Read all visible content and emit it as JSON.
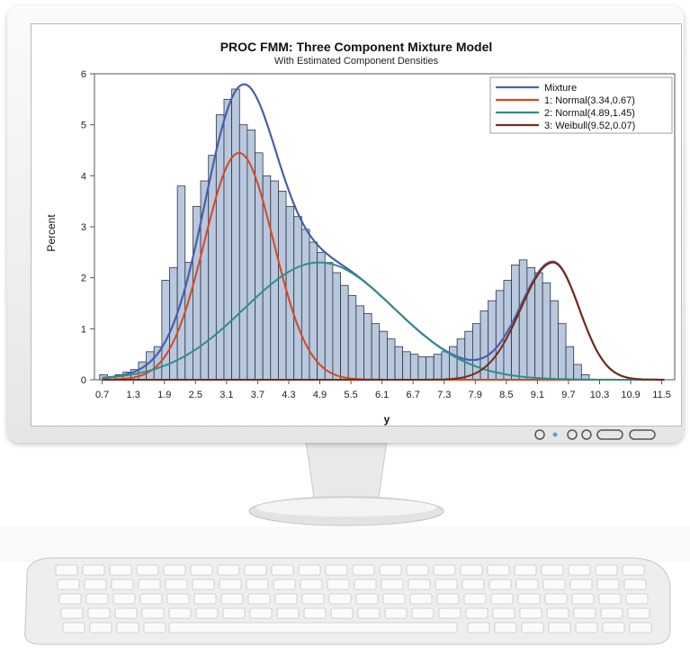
{
  "monitor": {
    "buttons": [
      "power",
      "led",
      "b1",
      "b2",
      "b3",
      "b4"
    ]
  },
  "chart_data": {
    "type": "bar",
    "title": "PROC FMM: Three Component Mixture Model",
    "subtitle": "With Estimated Component Densities",
    "xlabel": "y",
    "ylabel": "Percent",
    "xlim": [
      0.55,
      11.75
    ],
    "ylim": [
      0,
      6
    ],
    "x_ticks": [
      "0.7",
      "1.3",
      "1.9",
      "2.5",
      "3.1",
      "3.7",
      "4.3",
      "4.9",
      "5.5",
      "6.1",
      "6.7",
      "7.3",
      "7.9",
      "8.5",
      "9.1",
      "9.7",
      "10.3",
      "10.9",
      "11.5"
    ],
    "y_ticks": [
      "0",
      "1",
      "2",
      "3",
      "4",
      "5",
      "6"
    ],
    "bin_width": 0.15,
    "bins_start": 0.65,
    "values": [
      0.1,
      0.05,
      0.1,
      0.15,
      0.2,
      0.35,
      0.55,
      0.65,
      1.95,
      2.2,
      3.8,
      2.3,
      3.4,
      3.9,
      4.4,
      5.2,
      5.5,
      5.7,
      5.0,
      4.9,
      4.45,
      4.0,
      3.9,
      3.7,
      3.4,
      3.2,
      2.95,
      2.7,
      2.5,
      2.3,
      2.1,
      1.85,
      1.65,
      1.45,
      1.3,
      1.1,
      0.95,
      0.8,
      0.65,
      0.55,
      0.5,
      0.45,
      0.45,
      0.5,
      0.55,
      0.65,
      0.8,
      0.95,
      1.1,
      1.35,
      1.55,
      1.75,
      1.95,
      2.25,
      2.35,
      2.2,
      2.1,
      1.9,
      1.55,
      1.1,
      0.65,
      0.3,
      0.1
    ],
    "legend_position": "top-right",
    "series": [
      {
        "name": "Mixture",
        "color": "#4a5fae"
      },
      {
        "name": "1: Normal(3.34,0.67)",
        "color": "#d9461e"
      },
      {
        "name": "2: Normal(4.89,1.45)",
        "color": "#2e8f8a"
      },
      {
        "name": "3: Weibull(9.52,0.07)",
        "color": "#7a2a12"
      }
    ],
    "components": [
      {
        "dist": "normal",
        "mean": 3.34,
        "sd": 0.67,
        "peak": 4.45
      },
      {
        "dist": "normal",
        "mean": 4.89,
        "sd": 1.45,
        "peak": 2.3
      },
      {
        "dist": "weibull",
        "mode": 9.4,
        "scale": 0.62,
        "peak": 2.3
      }
    ],
    "bar_fill": "#b8c8de",
    "bar_stroke": "#30343c"
  }
}
